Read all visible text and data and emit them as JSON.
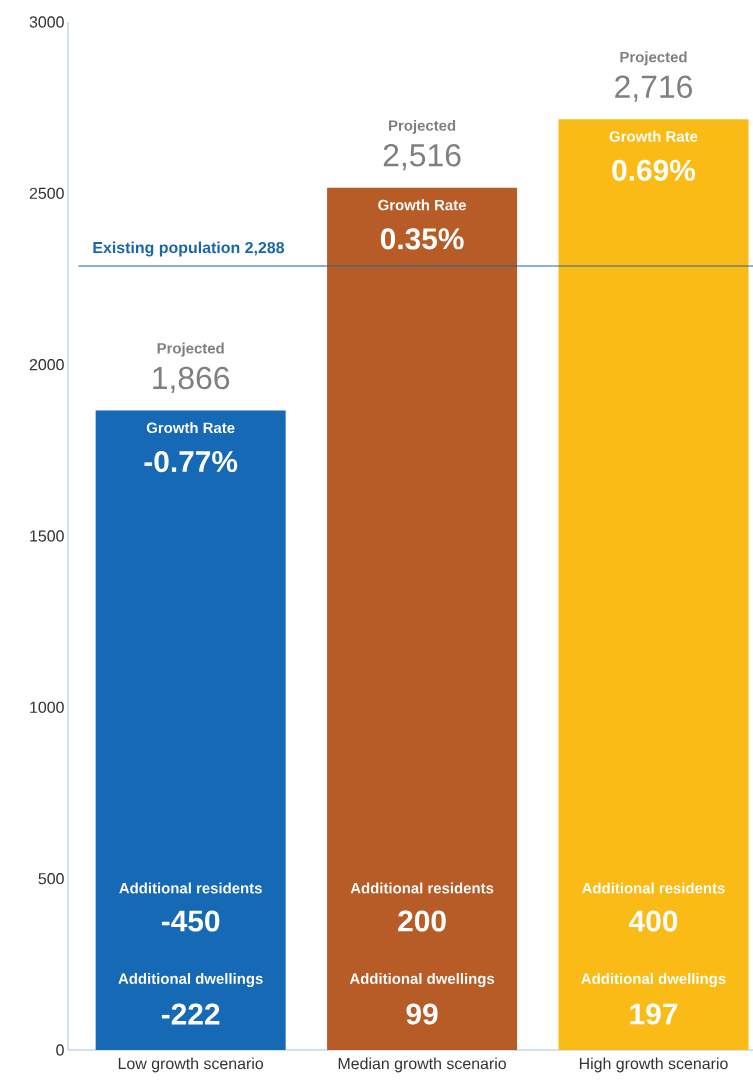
{
  "chart_data": {
    "type": "bar",
    "categories": [
      "Low growth scenario",
      "Median growth scenario",
      "High growth scenario"
    ],
    "values": [
      1866,
      2516,
      2716
    ],
    "colors": [
      "#1569b5",
      "#b85c27",
      "#fbbb17"
    ],
    "value_labels": [
      "1,866",
      "2,516",
      "2,716"
    ],
    "ylim": [
      0,
      3000
    ],
    "yticks": [
      0,
      500,
      1000,
      1500,
      2000,
      2500,
      3000
    ],
    "ref_lines": [
      {
        "axis": "y",
        "value": 2288,
        "label": "Existing population 2,288",
        "color": "#1a66a8"
      }
    ],
    "annotations": [
      "Projected",
      "Growth Rate",
      "-0.77%",
      "Additional residents",
      "-450",
      "Additional dwellings",
      "-222",
      "Projected",
      "Growth Rate",
      "0.35%",
      "Additional residents",
      "200",
      "Additional dwellings",
      "99",
      "Projected",
      "Growth Rate",
      "0.69%",
      "Additional residents",
      "400",
      "Additional dwellings",
      "197"
    ]
  }
}
